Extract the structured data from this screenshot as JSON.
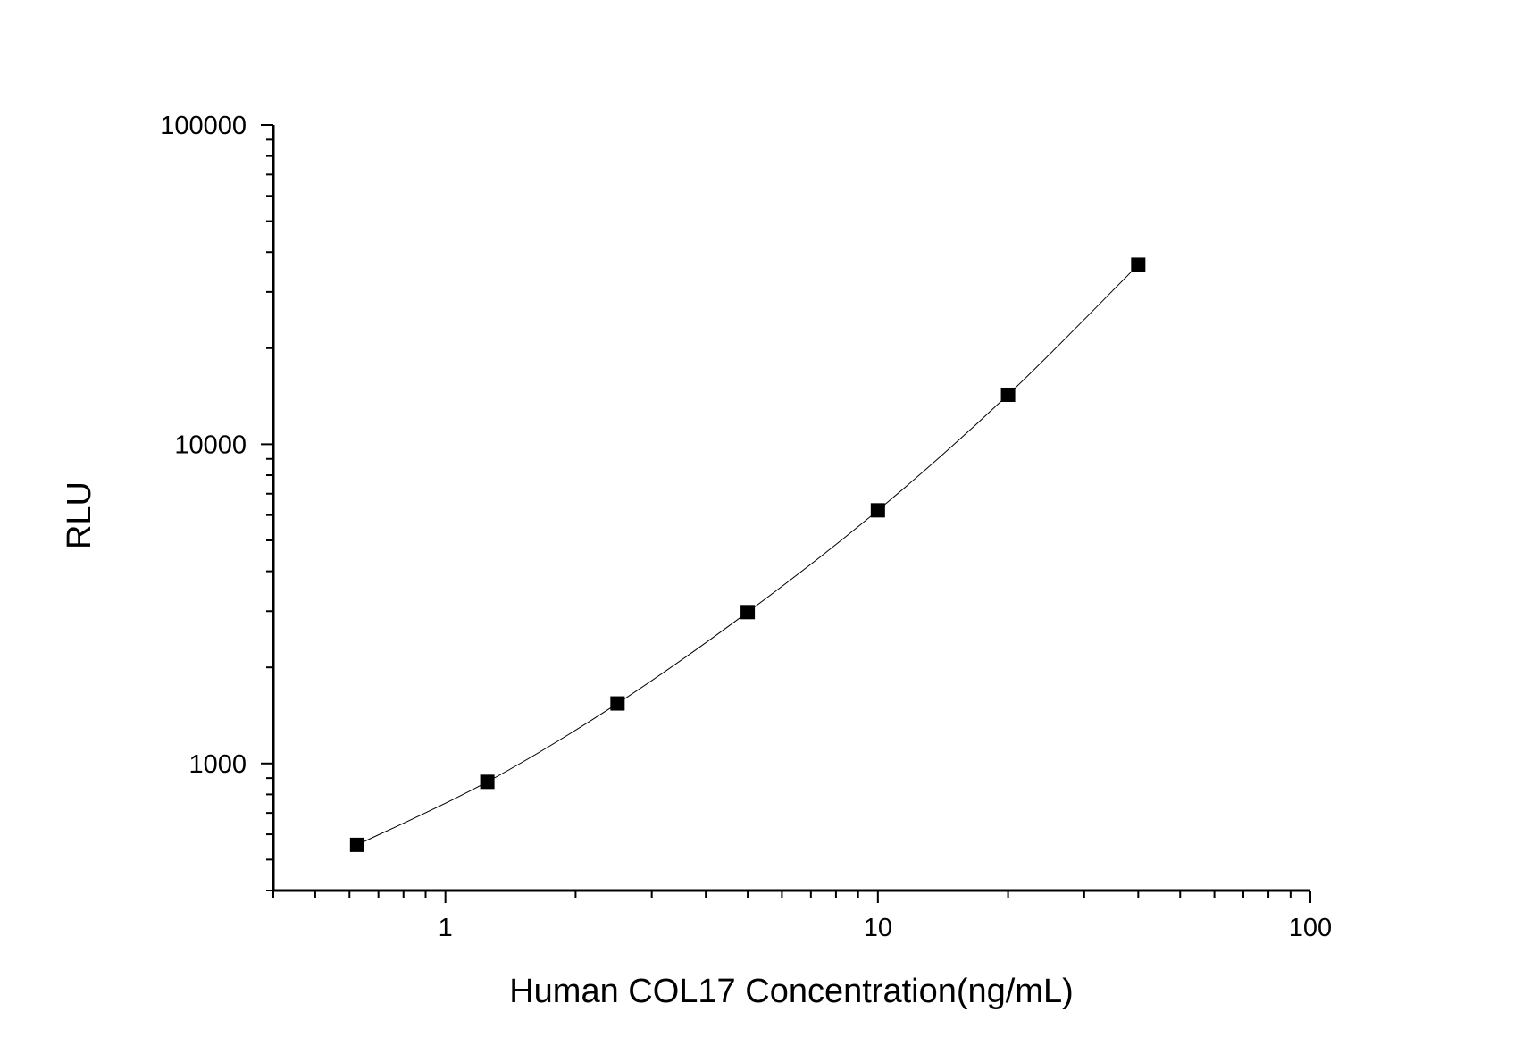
{
  "chart_data": {
    "type": "line",
    "title": "",
    "xlabel": "Human COL17 Concentration(ng/mL)",
    "ylabel": "RLU",
    "x_scale": "log",
    "y_scale": "log",
    "xlim": [
      0.4,
      100
    ],
    "ylim": [
      400,
      100000
    ],
    "x_ticks": [
      {
        "value": 1,
        "label": "1"
      },
      {
        "value": 10,
        "label": "10"
      },
      {
        "value": 100,
        "label": "100"
      }
    ],
    "y_ticks": [
      {
        "value": 1000,
        "label": "1000"
      },
      {
        "value": 10000,
        "label": "10000"
      },
      {
        "value": 100000,
        "label": "100000"
      }
    ],
    "grid": false,
    "marker": "square",
    "color": "#000000",
    "series": [
      {
        "x": [
          0.625,
          1.25,
          2.5,
          5,
          10,
          20,
          40
        ],
        "y": [
          556,
          876,
          1542,
          2980,
          6210,
          14290,
          36500
        ]
      }
    ]
  }
}
